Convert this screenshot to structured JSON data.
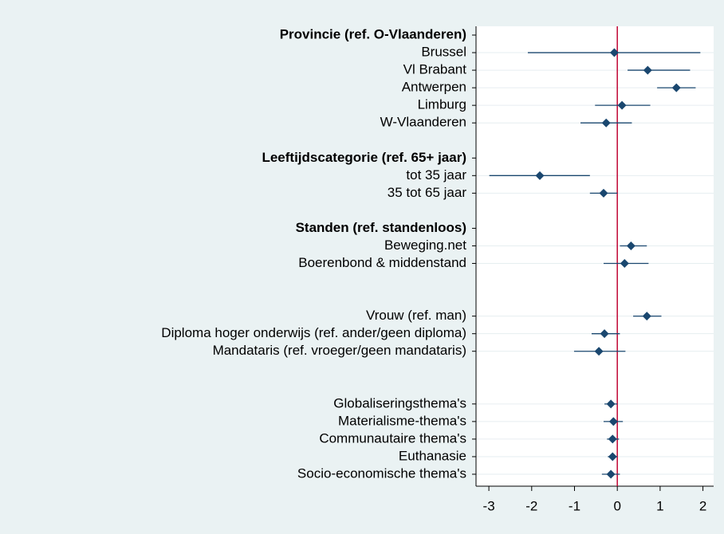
{
  "chart_data": {
    "type": "coefplot",
    "categories": [
      "Provincie (ref. O-Vlaanderen)",
      "Brussel",
      "Vl Brabant",
      "Antwerpen",
      "Limburg",
      "W-Vlaanderen",
      null,
      "Leeftijdscategorie (ref. 65+ jaar)",
      "tot 35 jaar",
      "35 tot 65 jaar",
      null,
      "Standen (ref. standenloos)",
      "Beweging.net",
      "Boerenbond & middenstand",
      null,
      null,
      "Vrouw (ref. man)",
      "Diploma hoger onderwijs (ref. ander/geen diploma)",
      "Mandataris (ref. vroeger/geen mandataris)",
      null,
      null,
      "Globaliseringsthema's",
      "Materialisme-thema's",
      "Communautaire thema's",
      "Euthanasie",
      "Socio-economische thema's"
    ],
    "values": [
      null,
      -0.07,
      0.71,
      1.38,
      0.11,
      -0.26,
      null,
      null,
      -1.81,
      -0.32,
      null,
      null,
      0.32,
      0.17,
      null,
      null,
      0.69,
      -0.3,
      -0.43,
      null,
      null,
      -0.15,
      -0.09,
      -0.11,
      -0.11,
      -0.15
    ],
    "ci_low": [
      null,
      -2.09,
      0.24,
      0.93,
      -0.52,
      -0.86,
      null,
      null,
      -2.99,
      -0.64,
      null,
      null,
      0.06,
      -0.32,
      null,
      null,
      0.37,
      -0.6,
      -1.01,
      null,
      null,
      -0.3,
      -0.32,
      -0.24,
      -0.22,
      -0.36
    ],
    "ci_high": [
      null,
      1.94,
      1.7,
      1.83,
      0.77,
      0.34,
      null,
      null,
      -0.64,
      0.0,
      null,
      null,
      0.69,
      0.73,
      null,
      null,
      1.03,
      0.06,
      0.19,
      null,
      null,
      0.0,
      0.13,
      0.04,
      0.0,
      0.06
    ],
    "color": "#1a476f",
    "ci_color": "#1a476f",
    "reference_line": 0,
    "reference_color": "#c10534",
    "xlim": [
      -3.3,
      2.25
    ],
    "xticks": [
      -3,
      -2,
      -1,
      0,
      1,
      2
    ],
    "grid": true
  }
}
